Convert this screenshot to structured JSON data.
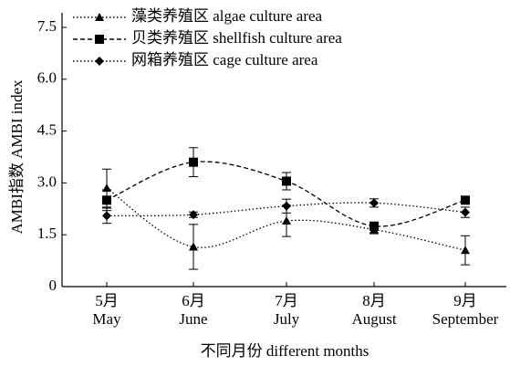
{
  "chart_data": {
    "type": "line",
    "categories_zh": [
      "5月",
      "6月",
      "7月",
      "8月",
      "9月"
    ],
    "categories": [
      "May",
      "June",
      "July",
      "August",
      "September"
    ],
    "xlabel": "不同月份 different months",
    "ylabel": "AMBI指数 AMBI index",
    "ylim": [
      0,
      7.5
    ],
    "yticks": [
      0,
      1.5,
      {
        "value": 3,
        "label": "3.0"
      },
      4.5,
      {
        "value": 6,
        "label": "6.0"
      },
      7.5
    ],
    "legend": "upper left",
    "series": [
      {
        "name": "藻类养殖区 algae culture area",
        "color": "#000000",
        "dash": "dotted",
        "marker": "triangle",
        "values": [
          2.85,
          1.15,
          1.9,
          1.65,
          1.05
        ],
        "errors": [
          0.55,
          0.65,
          0.45,
          0.12,
          0.42
        ]
      },
      {
        "name": "贝类养殖区 shellfish culture area",
        "color": "#000000",
        "dash": "dashed",
        "marker": "square",
        "values": [
          2.5,
          3.6,
          3.05,
          1.75,
          2.5
        ],
        "errors": [
          0.3,
          0.42,
          0.25,
          0.1,
          0.08
        ]
      },
      {
        "name": "网箱养殖区 cage culture area",
        "color": "#000000",
        "dash": "dotted",
        "marker": "diamond",
        "values": [
          2.05,
          2.08,
          2.33,
          2.42,
          2.15
        ],
        "errors": [
          0.22,
          0.08,
          0.2,
          0.12,
          0.15
        ]
      }
    ]
  }
}
